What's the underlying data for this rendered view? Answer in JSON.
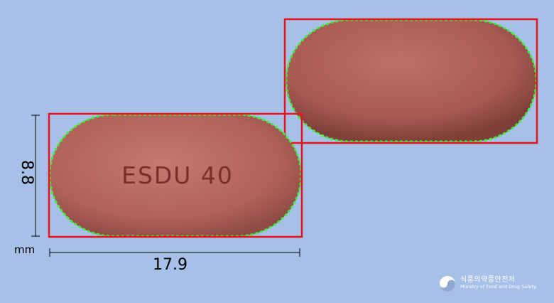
{
  "tablet": {
    "imprint": "ESDU 40",
    "color": "#b5675e",
    "imprint_color": "#7a2e2a"
  },
  "dimensions": {
    "width_label": "17.9",
    "height_label": "8.8",
    "unit_label": "mm"
  },
  "outline": {
    "box_color": "#e8141c",
    "contour_color": "#3ef23a"
  },
  "logo": {
    "korean": "식품의약품안전처",
    "english": "Ministry of Food and Drug Safety"
  }
}
